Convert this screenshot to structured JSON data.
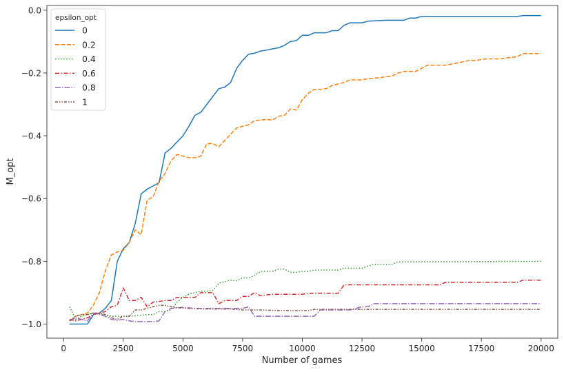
{
  "chart_data": {
    "type": "line",
    "title": "",
    "xlabel": "Number of games",
    "ylabel": "M_opt",
    "xlim": [
      -700,
      20700
    ],
    "ylim": [
      -1.045,
      0.015
    ],
    "xticks": [
      0,
      2500,
      5000,
      7500,
      10000,
      12500,
      15000,
      17500,
      20000
    ],
    "xtick_labels": [
      "0",
      "2500",
      "5000",
      "7500",
      "10000",
      "12500",
      "15000",
      "17500",
      "20000"
    ],
    "yticks": [
      -1.0,
      -0.8,
      -0.6,
      -0.4,
      -0.2,
      0.0
    ],
    "ytick_labels": [
      "−1.0",
      "−0.8",
      "−0.6",
      "−0.4",
      "−0.2",
      "0.0"
    ],
    "grid": false,
    "legend": {
      "title": "epsilon_opt",
      "placement": "top-left"
    },
    "series": [
      {
        "name": "0",
        "color": "#1f77b4",
        "dash": "solid",
        "points": [
          [
            250,
            -1.0
          ],
          [
            500,
            -1.0
          ],
          [
            750,
            -1.0
          ],
          [
            1000,
            -1.0
          ],
          [
            1250,
            -0.97
          ],
          [
            1500,
            -0.965
          ],
          [
            1750,
            -0.95
          ],
          [
            2000,
            -0.925
          ],
          [
            2250,
            -0.8
          ],
          [
            2500,
            -0.76
          ],
          [
            2750,
            -0.74
          ],
          [
            3000,
            -0.68
          ],
          [
            3250,
            -0.585
          ],
          [
            3500,
            -0.57
          ],
          [
            3750,
            -0.56
          ],
          [
            4000,
            -0.55
          ],
          [
            4250,
            -0.455
          ],
          [
            4500,
            -0.44
          ],
          [
            4750,
            -0.42
          ],
          [
            5000,
            -0.4
          ],
          [
            5250,
            -0.37
          ],
          [
            5500,
            -0.335
          ],
          [
            5750,
            -0.325
          ],
          [
            6000,
            -0.3
          ],
          [
            6250,
            -0.275
          ],
          [
            6500,
            -0.25
          ],
          [
            6750,
            -0.245
          ],
          [
            7000,
            -0.23
          ],
          [
            7250,
            -0.185
          ],
          [
            7500,
            -0.16
          ],
          [
            7750,
            -0.14
          ],
          [
            8000,
            -0.137
          ],
          [
            8250,
            -0.13
          ],
          [
            8500,
            -0.127
          ],
          [
            8750,
            -0.123
          ],
          [
            9000,
            -0.12
          ],
          [
            9250,
            -0.112
          ],
          [
            9500,
            -0.1
          ],
          [
            9750,
            -0.097
          ],
          [
            10000,
            -0.08
          ],
          [
            10250,
            -0.08
          ],
          [
            10500,
            -0.072
          ],
          [
            10750,
            -0.072
          ],
          [
            11000,
            -0.072
          ],
          [
            11250,
            -0.065
          ],
          [
            11500,
            -0.065
          ],
          [
            11750,
            -0.048
          ],
          [
            12000,
            -0.04
          ],
          [
            12500,
            -0.04
          ],
          [
            12750,
            -0.035
          ],
          [
            13500,
            -0.032
          ],
          [
            14250,
            -0.032
          ],
          [
            14500,
            -0.025
          ],
          [
            14750,
            -0.025
          ],
          [
            15000,
            -0.02
          ],
          [
            19000,
            -0.02
          ],
          [
            19250,
            -0.017
          ],
          [
            20000,
            -0.017
          ]
        ]
      },
      {
        "name": "0.2",
        "color": "#ff7f0e",
        "dash": "dashed",
        "points": [
          [
            250,
            -0.99
          ],
          [
            500,
            -0.975
          ],
          [
            750,
            -0.97
          ],
          [
            1000,
            -0.965
          ],
          [
            1250,
            -0.94
          ],
          [
            1500,
            -0.9
          ],
          [
            1750,
            -0.83
          ],
          [
            2000,
            -0.78
          ],
          [
            2250,
            -0.77
          ],
          [
            2500,
            -0.765
          ],
          [
            2750,
            -0.74
          ],
          [
            3000,
            -0.7
          ],
          [
            3250,
            -0.715
          ],
          [
            3500,
            -0.605
          ],
          [
            3750,
            -0.595
          ],
          [
            4000,
            -0.545
          ],
          [
            4250,
            -0.52
          ],
          [
            4500,
            -0.48
          ],
          [
            4750,
            -0.46
          ],
          [
            5000,
            -0.465
          ],
          [
            5250,
            -0.47
          ],
          [
            5500,
            -0.47
          ],
          [
            5750,
            -0.465
          ],
          [
            6000,
            -0.425
          ],
          [
            6250,
            -0.425
          ],
          [
            6500,
            -0.435
          ],
          [
            6750,
            -0.415
          ],
          [
            7000,
            -0.395
          ],
          [
            7250,
            -0.375
          ],
          [
            7500,
            -0.37
          ],
          [
            7750,
            -0.365
          ],
          [
            8000,
            -0.352
          ],
          [
            8250,
            -0.35
          ],
          [
            8500,
            -0.348
          ],
          [
            8750,
            -0.35
          ],
          [
            9000,
            -0.338
          ],
          [
            9250,
            -0.335
          ],
          [
            9500,
            -0.315
          ],
          [
            9750,
            -0.318
          ],
          [
            10000,
            -0.285
          ],
          [
            10250,
            -0.265
          ],
          [
            10500,
            -0.252
          ],
          [
            10750,
            -0.252
          ],
          [
            11000,
            -0.25
          ],
          [
            11250,
            -0.24
          ],
          [
            11500,
            -0.235
          ],
          [
            11750,
            -0.23
          ],
          [
            12000,
            -0.222
          ],
          [
            12500,
            -0.222
          ],
          [
            12750,
            -0.218
          ],
          [
            13250,
            -0.215
          ],
          [
            13500,
            -0.212
          ],
          [
            13750,
            -0.21
          ],
          [
            14000,
            -0.2
          ],
          [
            14250,
            -0.195
          ],
          [
            14750,
            -0.195
          ],
          [
            15000,
            -0.185
          ],
          [
            15250,
            -0.175
          ],
          [
            16000,
            -0.175
          ],
          [
            16500,
            -0.168
          ],
          [
            17000,
            -0.16
          ],
          [
            17250,
            -0.16
          ],
          [
            17500,
            -0.157
          ],
          [
            17750,
            -0.155
          ],
          [
            18000,
            -0.155
          ],
          [
            18250,
            -0.155
          ],
          [
            18500,
            -0.153
          ],
          [
            18750,
            -0.15
          ],
          [
            19000,
            -0.148
          ],
          [
            19250,
            -0.138
          ],
          [
            20000,
            -0.138
          ]
        ]
      },
      {
        "name": "0.4",
        "color": "#2ca02c",
        "dash": "dotted",
        "points": [
          [
            250,
            -0.945
          ],
          [
            500,
            -0.985
          ],
          [
            750,
            -0.975
          ],
          [
            1000,
            -0.97
          ],
          [
            1250,
            -0.965
          ],
          [
            1500,
            -0.968
          ],
          [
            1750,
            -0.97
          ],
          [
            2000,
            -0.975
          ],
          [
            2250,
            -0.975
          ],
          [
            2500,
            -0.975
          ],
          [
            2750,
            -0.975
          ],
          [
            3000,
            -0.973
          ],
          [
            3250,
            -0.972
          ],
          [
            3500,
            -0.97
          ],
          [
            3750,
            -0.97
          ],
          [
            4000,
            -0.96
          ],
          [
            4250,
            -0.96
          ],
          [
            4500,
            -0.955
          ],
          [
            4750,
            -0.93
          ],
          [
            5000,
            -0.915
          ],
          [
            5250,
            -0.905
          ],
          [
            5500,
            -0.9
          ],
          [
            5750,
            -0.895
          ],
          [
            6000,
            -0.895
          ],
          [
            6250,
            -0.893
          ],
          [
            6500,
            -0.87
          ],
          [
            6750,
            -0.865
          ],
          [
            7000,
            -0.86
          ],
          [
            7250,
            -0.862
          ],
          [
            7500,
            -0.853
          ],
          [
            7750,
            -0.853
          ],
          [
            8000,
            -0.845
          ],
          [
            8250,
            -0.833
          ],
          [
            8500,
            -0.832
          ],
          [
            8750,
            -0.832
          ],
          [
            9000,
            -0.825
          ],
          [
            9250,
            -0.825
          ],
          [
            9500,
            -0.835
          ],
          [
            9750,
            -0.835
          ],
          [
            10000,
            -0.832
          ],
          [
            10250,
            -0.832
          ],
          [
            10500,
            -0.828
          ],
          [
            11000,
            -0.828
          ],
          [
            11500,
            -0.828
          ],
          [
            11750,
            -0.822
          ],
          [
            12500,
            -0.822
          ],
          [
            12750,
            -0.815
          ],
          [
            13000,
            -0.81
          ],
          [
            13750,
            -0.81
          ],
          [
            14000,
            -0.802
          ],
          [
            20000,
            -0.8
          ]
        ]
      },
      {
        "name": "0.6",
        "color": "#d62728",
        "dash": "dashdot",
        "points": [
          [
            250,
            -0.985
          ],
          [
            500,
            -0.99
          ],
          [
            750,
            -0.985
          ],
          [
            1000,
            -0.98
          ],
          [
            1250,
            -0.97
          ],
          [
            1500,
            -0.965
          ],
          [
            1750,
            -0.96
          ],
          [
            2000,
            -0.945
          ],
          [
            2250,
            -0.94
          ],
          [
            2500,
            -0.885
          ],
          [
            2750,
            -0.925
          ],
          [
            3000,
            -0.925
          ],
          [
            3250,
            -0.915
          ],
          [
            3500,
            -0.945
          ],
          [
            3750,
            -0.93
          ],
          [
            4000,
            -0.928
          ],
          [
            4250,
            -0.925
          ],
          [
            4500,
            -0.925
          ],
          [
            4750,
            -0.915
          ],
          [
            5000,
            -0.915
          ],
          [
            5250,
            -0.915
          ],
          [
            5500,
            -0.915
          ],
          [
            5750,
            -0.9
          ],
          [
            6000,
            -0.9
          ],
          [
            6250,
            -0.9
          ],
          [
            6500,
            -0.935
          ],
          [
            6750,
            -0.925
          ],
          [
            7000,
            -0.925
          ],
          [
            7250,
            -0.925
          ],
          [
            7500,
            -0.912
          ],
          [
            7750,
            -0.912
          ],
          [
            8000,
            -0.9
          ],
          [
            8250,
            -0.91
          ],
          [
            8500,
            -0.907
          ],
          [
            8750,
            -0.905
          ],
          [
            10000,
            -0.905
          ],
          [
            10250,
            -0.902
          ],
          [
            11500,
            -0.902
          ],
          [
            11750,
            -0.875
          ],
          [
            15750,
            -0.875
          ],
          [
            16000,
            -0.867
          ],
          [
            19000,
            -0.867
          ],
          [
            19250,
            -0.86
          ],
          [
            20000,
            -0.86
          ]
        ]
      },
      {
        "name": "0.8",
        "color": "#9467bd",
        "dash": "dashdotdense",
        "points": [
          [
            250,
            -0.99
          ],
          [
            500,
            -0.98
          ],
          [
            750,
            -0.985
          ],
          [
            1000,
            -0.99
          ],
          [
            1250,
            -0.965
          ],
          [
            1500,
            -0.97
          ],
          [
            1750,
            -0.975
          ],
          [
            2000,
            -0.985
          ],
          [
            2250,
            -0.988
          ],
          [
            2500,
            -0.985
          ],
          [
            2750,
            -0.99
          ],
          [
            3000,
            -0.992
          ],
          [
            3750,
            -0.992
          ],
          [
            4000,
            -0.99
          ],
          [
            4250,
            -0.96
          ],
          [
            4500,
            -0.95
          ],
          [
            5000,
            -0.947
          ],
          [
            5500,
            -0.95
          ],
          [
            6000,
            -0.95
          ],
          [
            7500,
            -0.95
          ],
          [
            7750,
            -0.945
          ],
          [
            8000,
            -0.975
          ],
          [
            8250,
            -0.975
          ],
          [
            10500,
            -0.975
          ],
          [
            10750,
            -0.955
          ],
          [
            11000,
            -0.955
          ],
          [
            12000,
            -0.955
          ],
          [
            12250,
            -0.95
          ],
          [
            12500,
            -0.945
          ],
          [
            12750,
            -0.945
          ],
          [
            13000,
            -0.935
          ],
          [
            20000,
            -0.935
          ]
        ]
      },
      {
        "name": "1",
        "color": "#8c564b",
        "dash": "dashdotdot",
        "points": [
          [
            250,
            -0.99
          ],
          [
            500,
            -0.975
          ],
          [
            750,
            -0.97
          ],
          [
            1000,
            -0.97
          ],
          [
            1250,
            -0.965
          ],
          [
            1500,
            -0.965
          ],
          [
            1750,
            -0.97
          ],
          [
            2000,
            -0.98
          ],
          [
            2250,
            -0.985
          ],
          [
            2500,
            -0.975
          ],
          [
            2750,
            -0.975
          ],
          [
            3000,
            -0.955
          ],
          [
            3250,
            -0.955
          ],
          [
            3500,
            -0.95
          ],
          [
            3750,
            -0.945
          ],
          [
            4000,
            -0.94
          ],
          [
            4250,
            -0.94
          ],
          [
            4500,
            -0.945
          ],
          [
            4750,
            -0.948
          ],
          [
            5250,
            -0.95
          ],
          [
            6000,
            -0.952
          ],
          [
            7000,
            -0.952
          ],
          [
            7500,
            -0.955
          ],
          [
            8000,
            -0.955
          ],
          [
            8250,
            -0.955
          ],
          [
            9000,
            -0.957
          ],
          [
            10250,
            -0.957
          ],
          [
            10500,
            -0.953
          ],
          [
            20000,
            -0.953
          ]
        ]
      }
    ]
  }
}
